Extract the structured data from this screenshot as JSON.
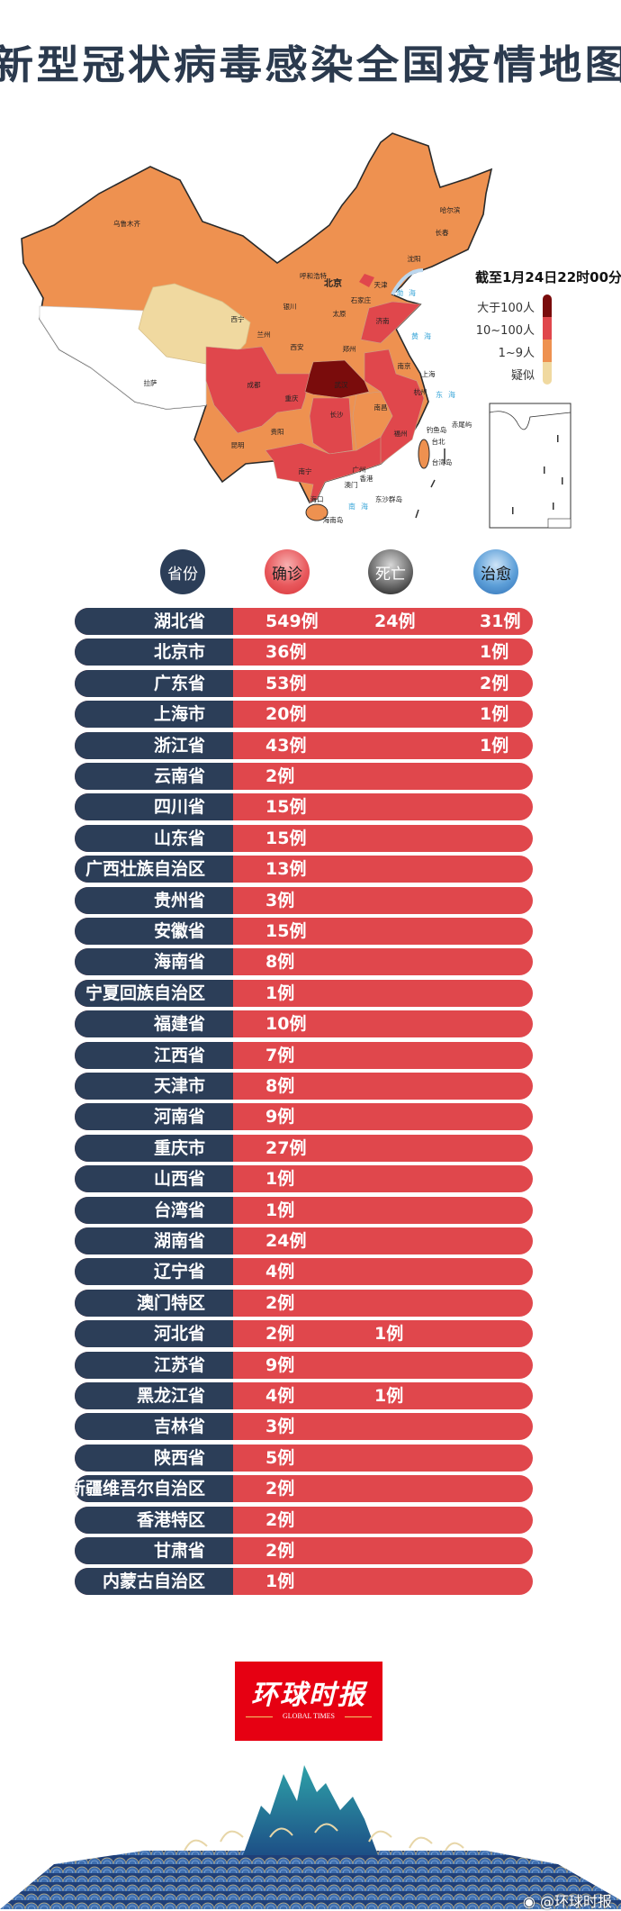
{
  "title": "新型冠状病毒感染全国疫情地图",
  "map": {
    "timestamp": "截至1月24日22时00分",
    "legend": [
      {
        "label": "大于100人",
        "color": "#7a0c0c"
      },
      {
        "label": "10~100人",
        "color": "#e0474c"
      },
      {
        "label": "1~9人",
        "color": "#ee9150"
      },
      {
        "label": "疑似",
        "color": "#f0d9a0"
      }
    ],
    "city_labels": [
      "乌鲁木齐",
      "哈尔滨",
      "长春",
      "沈阳",
      "呼和浩特",
      "北京",
      "天津",
      "石家庄",
      "银川",
      "太原",
      "西宁",
      "兰州",
      "济南",
      "西安",
      "郑州",
      "南京",
      "上海",
      "拉萨",
      "成都",
      "武汉",
      "杭州",
      "重庆",
      "长沙",
      "南昌",
      "贵阳",
      "福州",
      "昆明",
      "台北",
      "钓鱼岛",
      "赤尾屿",
      "台湾岛",
      "南宁",
      "广州",
      "香港",
      "澳门",
      "海口",
      "海南岛",
      "东沙群岛"
    ],
    "sea_labels": [
      "渤海",
      "黄海",
      "东海",
      "南海"
    ]
  },
  "table": {
    "headers": {
      "province": "省份",
      "confirmed": "确诊",
      "deaths": "死亡",
      "cured": "治愈"
    },
    "rows": [
      {
        "province": "湖北省",
        "confirmed": "549例",
        "deaths": "24例",
        "cured": "31例"
      },
      {
        "province": "北京市",
        "confirmed": "36例",
        "deaths": "",
        "cured": "1例"
      },
      {
        "province": "广东省",
        "confirmed": "53例",
        "deaths": "",
        "cured": "2例"
      },
      {
        "province": "上海市",
        "confirmed": "20例",
        "deaths": "",
        "cured": "1例"
      },
      {
        "province": "浙江省",
        "confirmed": "43例",
        "deaths": "",
        "cured": "1例"
      },
      {
        "province": "云南省",
        "confirmed": "2例",
        "deaths": "",
        "cured": ""
      },
      {
        "province": "四川省",
        "confirmed": "15例",
        "deaths": "",
        "cured": ""
      },
      {
        "province": "山东省",
        "confirmed": "15例",
        "deaths": "",
        "cured": ""
      },
      {
        "province": "广西壮族自治区",
        "confirmed": "13例",
        "deaths": "",
        "cured": ""
      },
      {
        "province": "贵州省",
        "confirmed": "3例",
        "deaths": "",
        "cured": ""
      },
      {
        "province": "安徽省",
        "confirmed": "15例",
        "deaths": "",
        "cured": ""
      },
      {
        "province": "海南省",
        "confirmed": "8例",
        "deaths": "",
        "cured": ""
      },
      {
        "province": "宁夏回族自治区",
        "confirmed": "1例",
        "deaths": "",
        "cured": ""
      },
      {
        "province": "福建省",
        "confirmed": "10例",
        "deaths": "",
        "cured": ""
      },
      {
        "province": "江西省",
        "confirmed": "7例",
        "deaths": "",
        "cured": ""
      },
      {
        "province": "天津市",
        "confirmed": "8例",
        "deaths": "",
        "cured": ""
      },
      {
        "province": "河南省",
        "confirmed": "9例",
        "deaths": "",
        "cured": ""
      },
      {
        "province": "重庆市",
        "confirmed": "27例",
        "deaths": "",
        "cured": ""
      },
      {
        "province": "山西省",
        "confirmed": "1例",
        "deaths": "",
        "cured": ""
      },
      {
        "province": "台湾省",
        "confirmed": "1例",
        "deaths": "",
        "cured": ""
      },
      {
        "province": "湖南省",
        "confirmed": "24例",
        "deaths": "",
        "cured": ""
      },
      {
        "province": "辽宁省",
        "confirmed": "4例",
        "deaths": "",
        "cured": ""
      },
      {
        "province": "澳门特区",
        "confirmed": "2例",
        "deaths": "",
        "cured": ""
      },
      {
        "province": "河北省",
        "confirmed": "2例",
        "deaths": "1例",
        "cured": ""
      },
      {
        "province": "江苏省",
        "confirmed": "9例",
        "deaths": "",
        "cured": ""
      },
      {
        "province": "黑龙江省",
        "confirmed": "4例",
        "deaths": "1例",
        "cured": ""
      },
      {
        "province": "吉林省",
        "confirmed": "3例",
        "deaths": "",
        "cured": ""
      },
      {
        "province": "陕西省",
        "confirmed": "5例",
        "deaths": "",
        "cured": ""
      },
      {
        "province": "新疆维吾尔自治区",
        "confirmed": "2例",
        "deaths": "",
        "cured": ""
      },
      {
        "province": "香港特区",
        "confirmed": "2例",
        "deaths": "",
        "cured": ""
      },
      {
        "province": "甘肃省",
        "confirmed": "2例",
        "deaths": "",
        "cured": ""
      },
      {
        "province": "内蒙古自治区",
        "confirmed": "1例",
        "deaths": "",
        "cured": ""
      }
    ]
  },
  "footer": {
    "logo_cn": "环球时报",
    "logo_en": "GLOBAL TIMES",
    "watermark": "@环球时报"
  }
}
